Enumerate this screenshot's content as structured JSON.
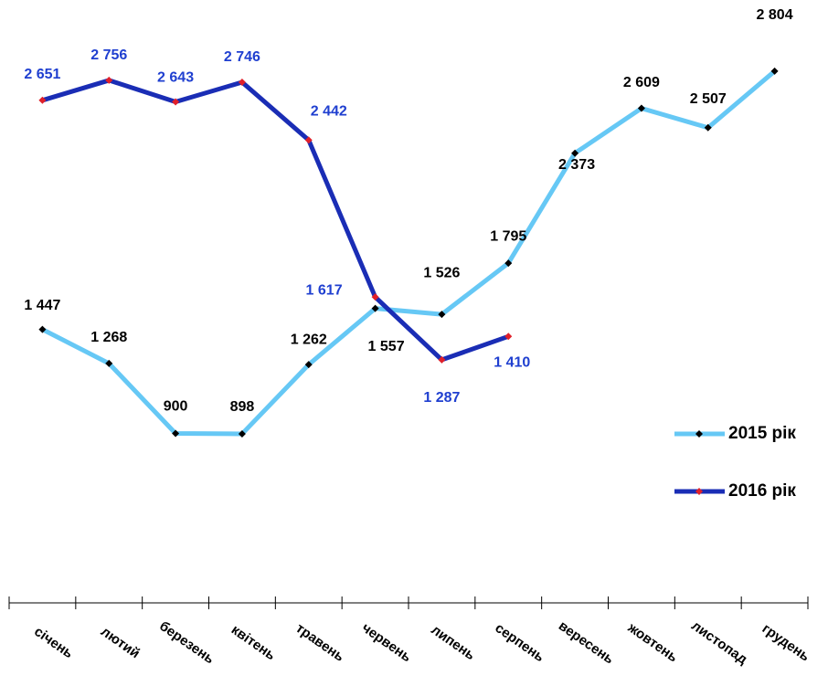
{
  "chart_data": {
    "type": "line",
    "categories": [
      "січень",
      "лютий",
      "березень",
      "квітень",
      "травень",
      "червень",
      "липень",
      "серпень",
      "вересень",
      "жовтень",
      "листопад",
      "грудень"
    ],
    "series": [
      {
        "name": "2015 рік",
        "color": "#66c8f5",
        "marker_color": "#000000",
        "label_color": "#000000",
        "values": [
          1447,
          1268,
          900,
          898,
          1262,
          1557,
          1526,
          1795,
          2373,
          2609,
          2507,
          2804
        ],
        "value_labels": [
          "1 447",
          "1 268",
          "900",
          "898",
          "1 262",
          "1 557",
          "1 526",
          "1 795",
          "2 373",
          "2 609",
          "2 507",
          "2 804"
        ]
      },
      {
        "name": "2016 рік",
        "color": "#1a2db5",
        "marker_color": "#e0202a",
        "label_color": "#1f3fd0",
        "values": [
          2651,
          2756,
          2643,
          2746,
          2442,
          1617,
          1287,
          1410,
          null,
          null,
          null,
          null
        ],
        "value_labels": [
          "2 651",
          "2 756",
          "2 643",
          "2 746",
          "2 442",
          "1 617",
          "1 287",
          "1 410",
          null,
          null,
          null,
          null
        ]
      }
    ]
  }
}
